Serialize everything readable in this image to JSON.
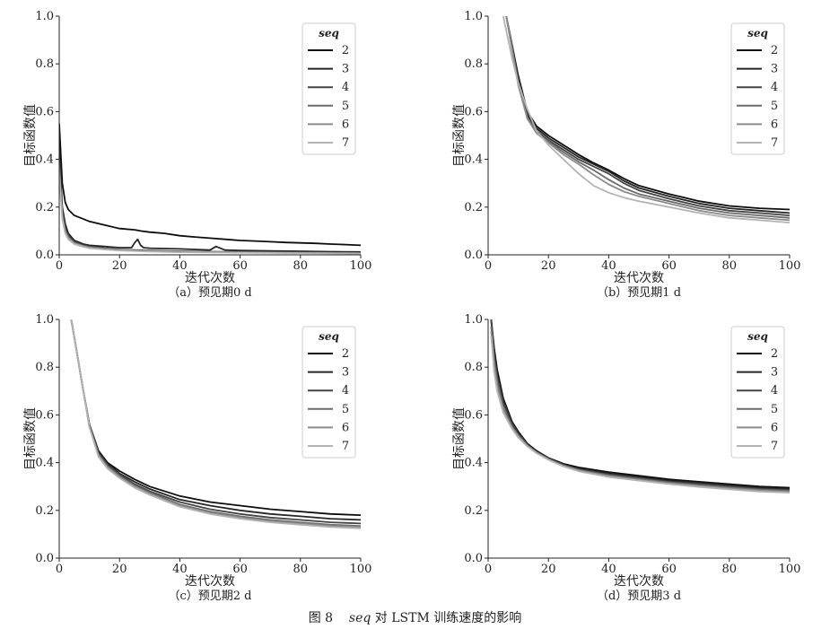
{
  "figure": {
    "number": "图 8",
    "seq_word": "seq",
    "caption_rest": "对 LSTM 训练速度的影响"
  },
  "line_colors": [
    "#0d0d0d",
    "#262626",
    "#444444",
    "#6b6b6b",
    "#8c8c8c",
    "#b3b3b3"
  ],
  "chart_data": [
    {
      "type": "line",
      "caption": "（a）预见期0 d",
      "xlabel": "迭代次数",
      "ylabel": "目标函数值",
      "xlim": [
        0,
        100
      ],
      "ylim": [
        0,
        1.0
      ],
      "xticks": [
        0,
        20,
        40,
        60,
        80,
        100
      ],
      "yticks": [
        0.0,
        0.2,
        0.4,
        0.6,
        0.8,
        1.0
      ],
      "grid": false,
      "legend": {
        "title": "seq",
        "placement": "top-right"
      },
      "series": [
        {
          "name": "2",
          "x": [
            0,
            1,
            2,
            3,
            5,
            8,
            10,
            15,
            20,
            25,
            27,
            30,
            35,
            40,
            45,
            50,
            55,
            60,
            65,
            70,
            75,
            80,
            85,
            90,
            95,
            100
          ],
          "y": [
            0.55,
            0.3,
            0.22,
            0.19,
            0.165,
            0.15,
            0.14,
            0.125,
            0.11,
            0.105,
            0.1,
            0.095,
            0.09,
            0.08,
            0.075,
            0.07,
            0.065,
            0.06,
            0.058,
            0.055,
            0.052,
            0.05,
            0.048,
            0.045,
            0.043,
            0.04
          ]
        },
        {
          "name": "3",
          "x": [
            0,
            1,
            2,
            3,
            5,
            8,
            10,
            15,
            20,
            24,
            25,
            26,
            27,
            28,
            30,
            40,
            50,
            52,
            55,
            60,
            70,
            80,
            90,
            100
          ],
          "y": [
            0.45,
            0.2,
            0.13,
            0.09,
            0.06,
            0.045,
            0.04,
            0.035,
            0.03,
            0.03,
            0.05,
            0.065,
            0.04,
            0.03,
            0.028,
            0.025,
            0.02,
            0.035,
            0.02,
            0.018,
            0.016,
            0.015,
            0.013,
            0.012
          ]
        },
        {
          "name": "4",
          "x": [
            0,
            1,
            2,
            3,
            5,
            8,
            10,
            15,
            20,
            30,
            40,
            50,
            60,
            70,
            80,
            90,
            100
          ],
          "y": [
            0.4,
            0.18,
            0.11,
            0.08,
            0.055,
            0.04,
            0.035,
            0.028,
            0.022,
            0.018,
            0.015,
            0.013,
            0.012,
            0.011,
            0.01,
            0.009,
            0.008
          ]
        },
        {
          "name": "5",
          "x": [
            0,
            1,
            2,
            3,
            5,
            8,
            10,
            15,
            20,
            30,
            40,
            50,
            60,
            70,
            80,
            90,
            100
          ],
          "y": [
            0.38,
            0.17,
            0.1,
            0.075,
            0.05,
            0.038,
            0.032,
            0.026,
            0.02,
            0.016,
            0.013,
            0.012,
            0.011,
            0.01,
            0.009,
            0.008,
            0.007
          ]
        },
        {
          "name": "6",
          "x": [
            0,
            1,
            2,
            3,
            5,
            8,
            10,
            15,
            20,
            30,
            40,
            50,
            60,
            70,
            80,
            90,
            100
          ],
          "y": [
            0.36,
            0.16,
            0.095,
            0.07,
            0.048,
            0.036,
            0.03,
            0.024,
            0.019,
            0.015,
            0.012,
            0.011,
            0.01,
            0.009,
            0.008,
            0.007,
            0.006
          ]
        },
        {
          "name": "7",
          "x": [
            0,
            1,
            2,
            3,
            5,
            8,
            10,
            15,
            20,
            30,
            40,
            50,
            60,
            70,
            80,
            90,
            100
          ],
          "y": [
            0.34,
            0.15,
            0.09,
            0.065,
            0.045,
            0.034,
            0.028,
            0.022,
            0.018,
            0.014,
            0.011,
            0.01,
            0.009,
            0.008,
            0.007,
            0.006,
            0.005
          ]
        }
      ]
    },
    {
      "type": "line",
      "caption": "（b）预见期1 d",
      "xlabel": "迭代次数",
      "ylabel": "目标函数值",
      "xlim": [
        0,
        100
      ],
      "ylim": [
        0,
        1.0
      ],
      "xticks": [
        0,
        20,
        40,
        60,
        80,
        100
      ],
      "yticks": [
        0.0,
        0.2,
        0.4,
        0.6,
        0.8,
        1.0
      ],
      "grid": false,
      "legend": {
        "title": "seq",
        "placement": "top-right"
      },
      "series": [
        {
          "name": "2",
          "x": [
            6,
            10,
            13,
            16,
            20,
            25,
            30,
            35,
            40,
            45,
            50,
            60,
            70,
            80,
            90,
            100
          ],
          "y": [
            1.0,
            0.75,
            0.6,
            0.54,
            0.5,
            0.46,
            0.42,
            0.385,
            0.355,
            0.32,
            0.29,
            0.255,
            0.225,
            0.205,
            0.195,
            0.19
          ]
        },
        {
          "name": "3",
          "x": [
            6,
            10,
            13,
            16,
            20,
            25,
            30,
            35,
            40,
            45,
            50,
            60,
            70,
            80,
            90,
            100
          ],
          "y": [
            1.0,
            0.74,
            0.59,
            0.53,
            0.49,
            0.45,
            0.41,
            0.38,
            0.35,
            0.31,
            0.28,
            0.245,
            0.215,
            0.195,
            0.185,
            0.175
          ]
        },
        {
          "name": "4",
          "x": [
            6,
            10,
            13,
            16,
            20,
            25,
            30,
            35,
            40,
            45,
            50,
            60,
            70,
            80,
            90,
            100
          ],
          "y": [
            1.0,
            0.73,
            0.58,
            0.52,
            0.48,
            0.44,
            0.4,
            0.37,
            0.34,
            0.3,
            0.27,
            0.235,
            0.205,
            0.185,
            0.175,
            0.165
          ]
        },
        {
          "name": "5",
          "x": [
            6,
            10,
            13,
            16,
            20,
            25,
            30,
            35,
            40,
            45,
            50,
            60,
            70,
            80,
            90,
            100
          ],
          "y": [
            1.0,
            0.72,
            0.575,
            0.515,
            0.475,
            0.43,
            0.39,
            0.355,
            0.315,
            0.28,
            0.255,
            0.225,
            0.195,
            0.175,
            0.165,
            0.155
          ]
        },
        {
          "name": "6",
          "x": [
            6,
            10,
            13,
            16,
            20,
            25,
            30,
            35,
            40,
            45,
            50,
            60,
            70,
            80,
            90,
            100
          ],
          "y": [
            1.0,
            0.71,
            0.57,
            0.51,
            0.47,
            0.42,
            0.38,
            0.335,
            0.295,
            0.265,
            0.245,
            0.215,
            0.185,
            0.165,
            0.155,
            0.145
          ]
        },
        {
          "name": "7",
          "x": [
            5,
            8,
            10,
            13,
            16,
            20,
            25,
            30,
            35,
            40,
            45,
            50,
            60,
            70,
            80,
            90,
            100
          ],
          "y": [
            1.0,
            0.82,
            0.72,
            0.61,
            0.52,
            0.46,
            0.4,
            0.34,
            0.29,
            0.26,
            0.24,
            0.225,
            0.2,
            0.175,
            0.155,
            0.145,
            0.135
          ]
        }
      ]
    },
    {
      "type": "line",
      "caption": "（c）预见期2 d",
      "xlabel": "迭代次数",
      "ylabel": "目标函数值",
      "xlim": [
        0,
        100
      ],
      "ylim": [
        0,
        1.0
      ],
      "xticks": [
        0,
        20,
        40,
        60,
        80,
        100
      ],
      "yticks": [
        0.0,
        0.2,
        0.4,
        0.6,
        0.8,
        1.0
      ],
      "grid": false,
      "legend": {
        "title": "seq",
        "placement": "top-right"
      },
      "series": [
        {
          "name": "2",
          "x": [
            4,
            6,
            8,
            10,
            13,
            16,
            20,
            25,
            30,
            40,
            50,
            60,
            70,
            80,
            90,
            100
          ],
          "y": [
            1.0,
            0.85,
            0.7,
            0.56,
            0.45,
            0.4,
            0.365,
            0.33,
            0.3,
            0.26,
            0.235,
            0.22,
            0.205,
            0.195,
            0.185,
            0.18
          ]
        },
        {
          "name": "3",
          "x": [
            4,
            6,
            8,
            10,
            13,
            16,
            20,
            25,
            30,
            40,
            50,
            60,
            70,
            80,
            90,
            100
          ],
          "y": [
            1.0,
            0.85,
            0.7,
            0.56,
            0.445,
            0.395,
            0.355,
            0.32,
            0.29,
            0.245,
            0.22,
            0.2,
            0.185,
            0.175,
            0.165,
            0.16
          ]
        },
        {
          "name": "4",
          "x": [
            4,
            6,
            8,
            10,
            13,
            16,
            20,
            25,
            30,
            40,
            50,
            60,
            70,
            80,
            90,
            100
          ],
          "y": [
            1.0,
            0.85,
            0.7,
            0.555,
            0.44,
            0.39,
            0.35,
            0.31,
            0.28,
            0.235,
            0.205,
            0.185,
            0.17,
            0.16,
            0.15,
            0.145
          ]
        },
        {
          "name": "5",
          "x": [
            4,
            6,
            8,
            10,
            13,
            16,
            20,
            25,
            30,
            40,
            50,
            60,
            70,
            80,
            90,
            100
          ],
          "y": [
            1.0,
            0.85,
            0.7,
            0.555,
            0.435,
            0.385,
            0.345,
            0.305,
            0.275,
            0.225,
            0.195,
            0.175,
            0.16,
            0.15,
            0.14,
            0.135
          ]
        },
        {
          "name": "6",
          "x": [
            4,
            6,
            8,
            10,
            13,
            16,
            20,
            25,
            30,
            40,
            50,
            60,
            70,
            80,
            90,
            100
          ],
          "y": [
            1.0,
            0.85,
            0.7,
            0.55,
            0.43,
            0.38,
            0.34,
            0.3,
            0.27,
            0.22,
            0.19,
            0.17,
            0.155,
            0.145,
            0.135,
            0.13
          ]
        },
        {
          "name": "7",
          "x": [
            4,
            6,
            8,
            10,
            13,
            16,
            20,
            25,
            30,
            40,
            50,
            60,
            70,
            80,
            90,
            100
          ],
          "y": [
            1.0,
            0.85,
            0.7,
            0.55,
            0.425,
            0.375,
            0.335,
            0.295,
            0.265,
            0.215,
            0.185,
            0.165,
            0.15,
            0.14,
            0.13,
            0.125
          ]
        }
      ]
    },
    {
      "type": "line",
      "caption": "（d）预见期3 d",
      "xlabel": "迭代次数",
      "ylabel": "目标函数值",
      "xlim": [
        0,
        100
      ],
      "ylim": [
        0,
        1.0
      ],
      "xticks": [
        0,
        20,
        40,
        60,
        80,
        100
      ],
      "yticks": [
        0.0,
        0.2,
        0.4,
        0.6,
        0.8,
        1.0
      ],
      "grid": false,
      "legend": {
        "title": "seq",
        "placement": "top-right"
      },
      "series": [
        {
          "name": "2",
          "x": [
            1,
            2,
            3,
            5,
            8,
            10,
            13,
            16,
            20,
            25,
            30,
            40,
            50,
            60,
            70,
            80,
            90,
            100
          ],
          "y": [
            1.0,
            0.88,
            0.79,
            0.67,
            0.57,
            0.53,
            0.48,
            0.45,
            0.42,
            0.395,
            0.38,
            0.36,
            0.345,
            0.33,
            0.32,
            0.31,
            0.3,
            0.295
          ]
        },
        {
          "name": "3",
          "x": [
            1,
            2,
            3,
            5,
            8,
            10,
            13,
            16,
            20,
            25,
            30,
            40,
            50,
            60,
            70,
            80,
            90,
            100
          ],
          "y": [
            1.0,
            0.86,
            0.77,
            0.66,
            0.565,
            0.525,
            0.478,
            0.448,
            0.418,
            0.392,
            0.375,
            0.355,
            0.34,
            0.325,
            0.315,
            0.305,
            0.295,
            0.29
          ]
        },
        {
          "name": "4",
          "x": [
            1,
            2,
            3,
            5,
            8,
            10,
            13,
            16,
            20,
            25,
            30,
            40,
            50,
            60,
            70,
            80,
            90,
            100
          ],
          "y": [
            1.0,
            0.85,
            0.76,
            0.65,
            0.56,
            0.52,
            0.475,
            0.445,
            0.416,
            0.39,
            0.372,
            0.35,
            0.335,
            0.32,
            0.31,
            0.3,
            0.29,
            0.285
          ]
        },
        {
          "name": "5",
          "x": [
            1,
            2,
            3,
            5,
            8,
            10,
            13,
            16,
            20,
            25,
            30,
            40,
            50,
            60,
            70,
            80,
            90,
            100
          ],
          "y": [
            0.97,
            0.83,
            0.74,
            0.63,
            0.55,
            0.515,
            0.472,
            0.443,
            0.415,
            0.388,
            0.37,
            0.347,
            0.332,
            0.317,
            0.306,
            0.296,
            0.287,
            0.282
          ]
        },
        {
          "name": "6",
          "x": [
            1,
            2,
            3,
            5,
            8,
            10,
            13,
            16,
            20,
            25,
            30,
            40,
            50,
            60,
            70,
            80,
            90,
            100
          ],
          "y": [
            0.95,
            0.8,
            0.72,
            0.62,
            0.545,
            0.51,
            0.47,
            0.442,
            0.414,
            0.386,
            0.367,
            0.343,
            0.328,
            0.313,
            0.302,
            0.292,
            0.283,
            0.278
          ]
        },
        {
          "name": "7",
          "x": [
            1,
            2,
            3,
            5,
            8,
            10,
            13,
            16,
            20,
            25,
            30,
            40,
            50,
            60,
            70,
            80,
            90,
            100
          ],
          "y": [
            0.93,
            0.78,
            0.7,
            0.61,
            0.54,
            0.505,
            0.468,
            0.44,
            0.412,
            0.384,
            0.364,
            0.34,
            0.325,
            0.31,
            0.298,
            0.288,
            0.279,
            0.274
          ]
        }
      ]
    }
  ]
}
